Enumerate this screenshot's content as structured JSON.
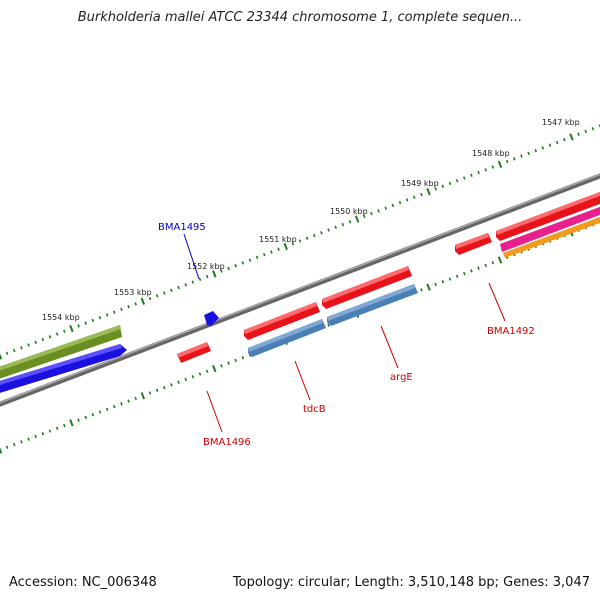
{
  "title": "Burkholderia mallei ATCC 23344 chromosome 1, complete sequen...",
  "footer": {
    "accession": "Accession: NC_006348",
    "summary": "Topology: circular; Length: 3,510,148 bp; Genes: 3,047"
  },
  "scale_labels": [
    "1554 kbp",
    "1553 kbp",
    "1552 kbp",
    "1551 kbp",
    "1550 kbp",
    "1549 kbp",
    "1548 kbp",
    "1547 kbp"
  ],
  "gene_labels": {
    "bma1495": "BMA1495",
    "bma1496": "BMA1496",
    "tdcb": "tdcB",
    "arge": "argE",
    "bma1492": "BMA1492"
  },
  "colors": {
    "backbone": "#808080",
    "tick": "#1f7a1f",
    "feature_red": "#e8121a",
    "feature_steelblue": "#4a7fb5",
    "feature_blue": "#1a10e0",
    "feature_olive": "#6b8e23",
    "feature_magenta": "#e8208c",
    "feature_orange": "#f29a1a",
    "label_red": "#cc0000",
    "label_blue": "#0000cc"
  }
}
